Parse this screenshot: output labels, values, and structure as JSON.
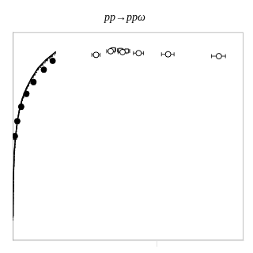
{
  "chart_data": {
    "type": "scatter",
    "title": "pp→ppω",
    "log": true,
    "grid": false,
    "tick_labels": false,
    "xlim": [
      1.003,
      40.0
    ],
    "ylim": [
      8e-06,
      40.0
    ],
    "xticks": [
      10
    ],
    "series": [
      {
        "type": "line",
        "line_style": "solid",
        "color": "#000000",
        "x": [
          1.005,
          1.01,
          1.015,
          1.02,
          1.03,
          1.05,
          1.08,
          1.12,
          1.17,
          1.25,
          1.35,
          1.5,
          1.7,
          2.0
        ],
        "values": [
          5e-05,
          0.0002,
          0.0006,
          0.0015,
          0.006,
          0.018,
          0.055,
          0.14,
          0.3,
          0.65,
          1.3,
          2.8,
          5.2,
          9.5
        ]
      },
      {
        "type": "line",
        "line_style": "dashed",
        "color": "#000000",
        "x": [
          1.005,
          1.01,
          1.015,
          1.02,
          1.03,
          1.05,
          1.08,
          1.12,
          1.17,
          1.25,
          1.35,
          1.5,
          1.7,
          2.0
        ],
        "values": [
          4e-05,
          0.00018,
          0.00055,
          0.0013,
          0.005,
          0.016,
          0.05,
          0.13,
          0.27,
          0.6,
          1.2,
          2.6,
          4.8,
          8.8
        ]
      },
      {
        "type": "line",
        "line_style": "dotted",
        "color": "#000000",
        "x": [
          1.005,
          1.01,
          1.015,
          1.02,
          1.03,
          1.05,
          1.08,
          1.12,
          1.17,
          1.25,
          1.35,
          1.5,
          1.7,
          2.0
        ],
        "values": [
          3.5e-05,
          0.00015,
          0.00048,
          0.0012,
          0.0045,
          0.014,
          0.045,
          0.12,
          0.25,
          0.56,
          1.1,
          2.4,
          4.4,
          8.2
        ]
      },
      {
        "type": "line",
        "line_style": "dashdot",
        "color": "#000000",
        "x": [
          1.005,
          1.01,
          1.015,
          1.02,
          1.03,
          1.05,
          1.08,
          1.12,
          1.17,
          1.25,
          1.35,
          1.5,
          1.7,
          2.0
        ],
        "values": [
          4.5e-05,
          0.00019,
          0.00058,
          0.0014,
          0.0055,
          0.017,
          0.052,
          0.135,
          0.285,
          0.62,
          1.25,
          2.7,
          5.0,
          9.2
        ]
      },
      {
        "type": "scatter",
        "marker": "filled_circle",
        "color": "#000000",
        "x": [
          1.04,
          1.08,
          1.15,
          1.25,
          1.4,
          1.65,
          1.9
        ],
        "values": [
          0.018,
          0.055,
          0.16,
          0.42,
          1.0,
          2.5,
          4.8
        ],
        "xerr": [
          0.01,
          0.01,
          0.015,
          0.015,
          0.02,
          0.025,
          0.025
        ],
        "yerr": [
          0.004,
          0.01,
          0.03,
          0.08,
          0.18,
          0.4,
          0.65
        ]
      },
      {
        "type": "scatter",
        "marker": "open_circle",
        "color": "#000000",
        "x": [
          3.8,
          4.8,
          5.8,
          7.5,
          12.0,
          27.0
        ],
        "values": [
          7.5,
          9.8,
          9.2,
          8.5,
          7.8,
          6.8
        ],
        "xerr": [
          0.25,
          0.3,
          0.4,
          0.6,
          1.2,
          3.0
        ],
        "yerr": [
          1.2,
          0.9,
          0.8,
          0.8,
          0.8,
          0.9
        ]
      },
      {
        "type": "scatter",
        "marker": "open_square",
        "color": "#000000",
        "x": [
          5.0,
          5.6,
          6.2
        ],
        "values": [
          11.0,
          10.5,
          10.0
        ],
        "xerr": [
          0.2,
          0.25,
          0.3
        ],
        "yerr": [
          0.6,
          0.6,
          0.6
        ]
      }
    ]
  }
}
